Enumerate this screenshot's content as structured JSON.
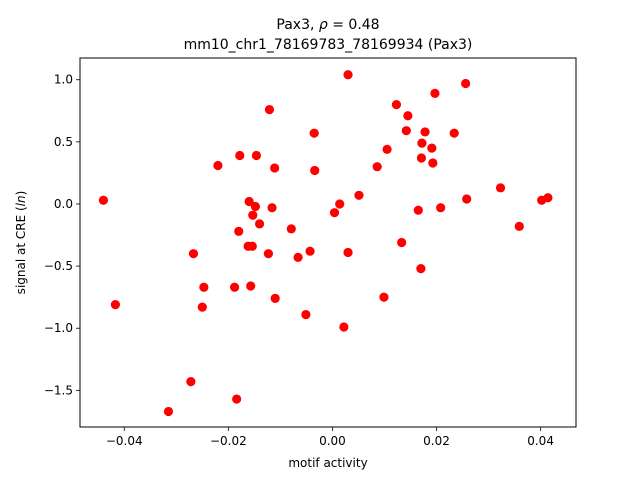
{
  "chart_data": {
    "type": "scatter",
    "title_line1_prefix": "Pax3, ",
    "title_line1_rho": "ρ",
    "title_line1_suffix": " = 0.48",
    "title_line2": "mm10_chr1_78169783_78169934 (Pax3)",
    "xlabel": "motif activity",
    "ylabel_prefix": "signal at CRE (",
    "ylabel_italic": "ln",
    "ylabel_suffix": ")",
    "xlim": [
      -0.0485,
      0.0468
    ],
    "ylim": [
      -1.795,
      1.175
    ],
    "xticks": [
      {
        "value": -0.04,
        "label": "−0.04"
      },
      {
        "value": -0.02,
        "label": "−0.02"
      },
      {
        "value": 0.0,
        "label": "0.00"
      },
      {
        "value": 0.02,
        "label": "0.02"
      },
      {
        "value": 0.04,
        "label": "0.04"
      }
    ],
    "yticks": [
      {
        "value": -1.5,
        "label": "−1.5"
      },
      {
        "value": -1.0,
        "label": "−1.0"
      },
      {
        "value": -0.5,
        "label": "−0.5"
      },
      {
        "value": 0.0,
        "label": "0.0"
      },
      {
        "value": 0.5,
        "label": "0.5"
      },
      {
        "value": 1.0,
        "label": "1.0"
      }
    ],
    "grid": false,
    "marker_color": "#ff0000",
    "points": [
      {
        "x": -0.044,
        "y": 0.03
      },
      {
        "x": -0.0417,
        "y": -0.81
      },
      {
        "x": -0.0315,
        "y": -1.67
      },
      {
        "x": -0.0272,
        "y": -1.43
      },
      {
        "x": -0.0267,
        "y": -0.4
      },
      {
        "x": -0.025,
        "y": -0.83
      },
      {
        "x": -0.0247,
        "y": -0.67
      },
      {
        "x": -0.022,
        "y": 0.31
      },
      {
        "x": -0.0188,
        "y": -0.67
      },
      {
        "x": -0.0184,
        "y": -1.57
      },
      {
        "x": -0.018,
        "y": -0.22
      },
      {
        "x": -0.0178,
        "y": 0.39
      },
      {
        "x": -0.0162,
        "y": -0.34
      },
      {
        "x": -0.016,
        "y": 0.02
      },
      {
        "x": -0.0157,
        "y": -0.66
      },
      {
        "x": -0.0154,
        "y": -0.34
      },
      {
        "x": -0.0153,
        "y": -0.09
      },
      {
        "x": -0.0148,
        "y": -0.02
      },
      {
        "x": -0.0146,
        "y": 0.39
      },
      {
        "x": -0.014,
        "y": -0.16
      },
      {
        "x": -0.0123,
        "y": -0.4
      },
      {
        "x": -0.0121,
        "y": 0.76
      },
      {
        "x": -0.0116,
        "y": -0.03
      },
      {
        "x": -0.0111,
        "y": 0.29
      },
      {
        "x": -0.011,
        "y": -0.76
      },
      {
        "x": -0.0079,
        "y": -0.2
      },
      {
        "x": -0.0066,
        "y": -0.43
      },
      {
        "x": -0.0051,
        "y": -0.89
      },
      {
        "x": -0.0043,
        "y": -0.38
      },
      {
        "x": -0.0035,
        "y": 0.57
      },
      {
        "x": -0.0034,
        "y": 0.27
      },
      {
        "x": 0.0004,
        "y": -0.07
      },
      {
        "x": 0.0014,
        "y": 0.0
      },
      {
        "x": 0.0022,
        "y": -0.99
      },
      {
        "x": 0.003,
        "y": 1.04
      },
      {
        "x": 0.003,
        "y": -0.39
      },
      {
        "x": 0.0051,
        "y": 0.07
      },
      {
        "x": 0.0086,
        "y": 0.3
      },
      {
        "x": 0.0099,
        "y": -0.75
      },
      {
        "x": 0.0105,
        "y": 0.44
      },
      {
        "x": 0.0123,
        "y": 0.8
      },
      {
        "x": 0.0133,
        "y": -0.31
      },
      {
        "x": 0.0142,
        "y": 0.59
      },
      {
        "x": 0.0145,
        "y": 0.71
      },
      {
        "x": 0.0165,
        "y": -0.05
      },
      {
        "x": 0.017,
        "y": -0.52
      },
      {
        "x": 0.0171,
        "y": 0.37
      },
      {
        "x": 0.0172,
        "y": 0.49
      },
      {
        "x": 0.0178,
        "y": 0.58
      },
      {
        "x": 0.0191,
        "y": 0.45
      },
      {
        "x": 0.0193,
        "y": 0.33
      },
      {
        "x": 0.0197,
        "y": 0.89
      },
      {
        "x": 0.0208,
        "y": -0.03
      },
      {
        "x": 0.0234,
        "y": 0.57
      },
      {
        "x": 0.0256,
        "y": 0.97
      },
      {
        "x": 0.0258,
        "y": 0.04
      },
      {
        "x": 0.0323,
        "y": 0.13
      },
      {
        "x": 0.0359,
        "y": -0.18
      },
      {
        "x": 0.0402,
        "y": 0.03
      },
      {
        "x": 0.0414,
        "y": 0.05
      }
    ]
  }
}
